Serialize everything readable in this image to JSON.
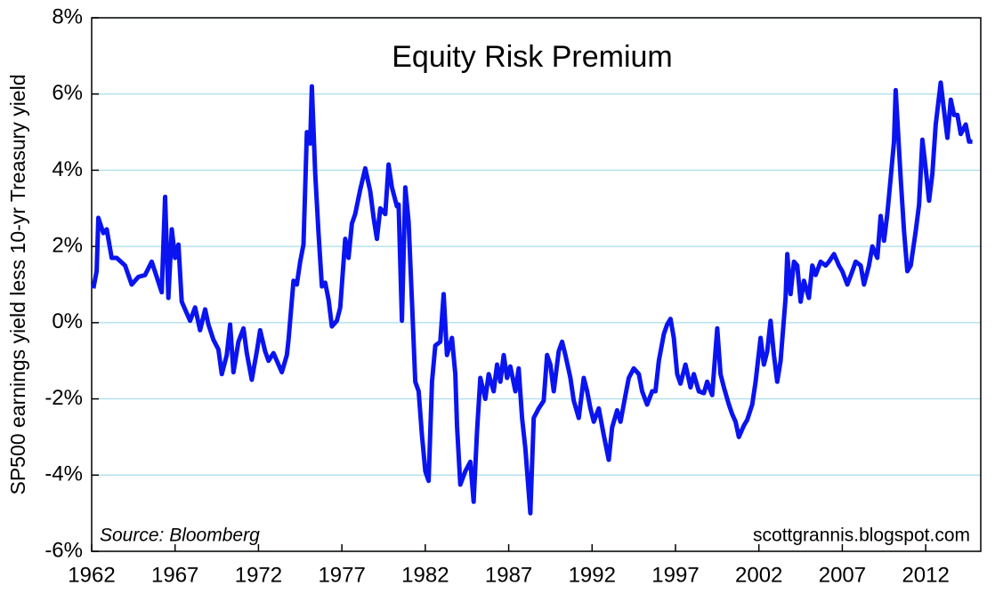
{
  "chart_data": {
    "type": "line",
    "title": "Equity Risk Premium",
    "y_label": "SP500 earnings yield less 10-yr Treasury yield",
    "annotations": [
      "Source: Bloomberg",
      "scottgrannis.blogspot.com"
    ],
    "xlim": [
      1962,
      2015.3
    ],
    "xticks": [
      1962,
      1967,
      1972,
      1977,
      1982,
      1987,
      1992,
      1997,
      2002,
      2007,
      2012
    ],
    "ylim": [
      -6,
      8
    ],
    "yticks": [
      {
        "value": -6,
        "label": "-6%"
      },
      {
        "value": -4,
        "label": "-4%"
      },
      {
        "value": -2,
        "label": "-2%"
      },
      {
        "value": 0,
        "label": "0%"
      },
      {
        "value": 2,
        "label": "2%"
      },
      {
        "value": 4,
        "label": "4%"
      },
      {
        "value": 6,
        "label": "6%"
      },
      {
        "value": 8,
        "label": "8%"
      }
    ],
    "grid": true,
    "grid_color": "#a8dcec",
    "series": [
      {
        "name": "Equity Risk Premium",
        "color": "#0a14f0",
        "x": [
          1962.1,
          1962.3,
          1962.4,
          1962.7,
          1962.9,
          1963.2,
          1963.5,
          1964.0,
          1964.4,
          1964.8,
          1965.2,
          1965.6,
          1965.9,
          1966.2,
          1966.4,
          1966.6,
          1966.8,
          1967.0,
          1967.2,
          1967.4,
          1967.7,
          1967.9,
          1968.2,
          1968.5,
          1968.8,
          1969.0,
          1969.3,
          1969.6,
          1969.8,
          1970.1,
          1970.3,
          1970.5,
          1970.8,
          1971.1,
          1971.3,
          1971.6,
          1971.9,
          1972.1,
          1972.4,
          1972.6,
          1972.9,
          1973.2,
          1973.4,
          1973.7,
          1973.8,
          1974.1,
          1974.3,
          1974.5,
          1974.7,
          1974.9,
          1975.1,
          1975.2,
          1975.4,
          1975.6,
          1975.8,
          1976.0,
          1976.2,
          1976.4,
          1976.7,
          1976.9,
          1977.2,
          1977.4,
          1977.6,
          1977.8,
          1978.1,
          1978.4,
          1978.7,
          1978.9,
          1979.1,
          1979.3,
          1979.6,
          1979.8,
          1980.0,
          1980.3,
          1980.4,
          1980.6,
          1980.8,
          1981.0,
          1981.2,
          1981.4,
          1981.6,
          1981.8,
          1982.0,
          1982.2,
          1982.4,
          1982.6,
          1982.9,
          1983.1,
          1983.3,
          1983.6,
          1983.8,
          1983.9,
          1984.1,
          1984.4,
          1984.7,
          1984.9,
          1985.1,
          1985.3,
          1985.6,
          1985.8,
          1986.1,
          1986.3,
          1986.5,
          1986.7,
          1986.9,
          1987.1,
          1987.4,
          1987.6,
          1987.8,
          1988.0,
          1988.3,
          1988.5,
          1988.8,
          1989.1,
          1989.3,
          1989.5,
          1989.7,
          1990.0,
          1990.2,
          1990.4,
          1990.7,
          1990.9,
          1991.2,
          1991.5,
          1991.7,
          1991.9,
          1992.1,
          1992.4,
          1992.7,
          1993.0,
          1993.2,
          1993.5,
          1993.7,
          1994.0,
          1994.2,
          1994.5,
          1994.8,
          1995.0,
          1995.3,
          1995.6,
          1995.8,
          1996.0,
          1996.3,
          1996.5,
          1996.7,
          1996.9,
          1997.1,
          1997.3,
          1997.6,
          1997.9,
          1998.1,
          1998.4,
          1998.7,
          1998.9,
          1999.2,
          1999.5,
          1999.7,
          1999.9,
          2000.2,
          2000.4,
          2000.6,
          2000.8,
          2001.1,
          2001.3,
          2001.6,
          2001.8,
          2002.1,
          2002.3,
          2002.5,
          2002.7,
          2002.9,
          2003.1,
          2003.3,
          2003.6,
          2003.7,
          2003.9,
          2004.1,
          2004.3,
          2004.5,
          2004.7,
          2005.0,
          2005.2,
          2005.4,
          2005.7,
          2006.0,
          2006.2,
          2006.5,
          2006.8,
          2007.0,
          2007.3,
          2007.6,
          2007.8,
          2008.1,
          2008.3,
          2008.6,
          2008.8,
          2009.1,
          2009.3,
          2009.5,
          2009.7,
          2009.9,
          2010.1,
          2010.2,
          2010.5,
          2010.7,
          2010.9,
          2011.1,
          2011.4,
          2011.6,
          2011.8,
          2012.0,
          2012.2,
          2012.4,
          2012.6,
          2012.9,
          2013.1,
          2013.3,
          2013.5,
          2013.7,
          2013.9,
          2014.1,
          2014.4,
          2014.6,
          2014.8
        ],
        "values": [
          0.9,
          1.35,
          2.75,
          2.35,
          2.45,
          1.7,
          1.7,
          1.5,
          1.0,
          1.2,
          1.25,
          1.6,
          1.2,
          0.8,
          3.3,
          0.65,
          2.45,
          1.7,
          2.05,
          0.55,
          0.25,
          0.05,
          0.4,
          -0.2,
          0.35,
          -0.05,
          -0.45,
          -0.7,
          -1.35,
          -0.85,
          -0.05,
          -1.3,
          -0.5,
          -0.15,
          -0.8,
          -1.5,
          -0.75,
          -0.2,
          -0.75,
          -1.0,
          -0.8,
          -1.1,
          -1.3,
          -0.85,
          -0.45,
          1.1,
          1.0,
          1.6,
          2.05,
          5.0,
          4.7,
          6.2,
          3.9,
          2.35,
          0.95,
          1.05,
          0.6,
          -0.1,
          0.05,
          0.4,
          2.2,
          1.7,
          2.6,
          2.85,
          3.5,
          4.05,
          3.45,
          2.75,
          2.2,
          3.0,
          2.85,
          4.15,
          3.55,
          3.05,
          3.1,
          0.05,
          3.55,
          2.65,
          0.55,
          -1.55,
          -1.8,
          -2.95,
          -3.9,
          -4.15,
          -1.55,
          -0.6,
          -0.5,
          0.75,
          -0.85,
          -0.4,
          -1.35,
          -2.7,
          -4.25,
          -3.9,
          -3.65,
          -4.7,
          -2.85,
          -1.45,
          -2.0,
          -1.35,
          -1.8,
          -1.1,
          -1.55,
          -0.85,
          -1.45,
          -1.15,
          -1.8,
          -1.2,
          -2.5,
          -3.3,
          -5.0,
          -2.5,
          -2.25,
          -2.05,
          -0.85,
          -1.1,
          -1.8,
          -0.75,
          -0.5,
          -0.85,
          -1.45,
          -2.05,
          -2.5,
          -1.45,
          -1.8,
          -2.25,
          -2.6,
          -2.25,
          -2.95,
          -3.6,
          -2.75,
          -2.3,
          -2.6,
          -1.9,
          -1.45,
          -1.2,
          -1.35,
          -1.8,
          -2.15,
          -1.8,
          -1.8,
          -1.0,
          -0.3,
          -0.05,
          0.1,
          -0.4,
          -1.35,
          -1.6,
          -1.1,
          -1.7,
          -1.35,
          -1.8,
          -1.85,
          -1.55,
          -1.9,
          -0.15,
          -1.35,
          -1.7,
          -2.15,
          -2.4,
          -2.6,
          -3.0,
          -2.7,
          -2.55,
          -2.15,
          -1.55,
          -0.4,
          -1.1,
          -0.75,
          0.05,
          -0.85,
          -1.55,
          -1.0,
          0.65,
          1.8,
          0.75,
          1.6,
          1.5,
          0.55,
          1.1,
          0.65,
          1.5,
          1.25,
          1.6,
          1.5,
          1.6,
          1.8,
          1.5,
          1.35,
          1.0,
          1.35,
          1.6,
          1.5,
          1.0,
          1.5,
          2.0,
          1.7,
          2.8,
          2.15,
          2.85,
          3.8,
          4.75,
          6.1,
          3.8,
          2.4,
          1.35,
          1.5,
          2.4,
          3.1,
          4.8,
          4.05,
          3.2,
          3.9,
          5.2,
          6.3,
          5.55,
          4.85,
          5.85,
          5.45,
          5.45,
          4.95,
          5.2,
          4.75,
          4.75
        ]
      }
    ]
  }
}
